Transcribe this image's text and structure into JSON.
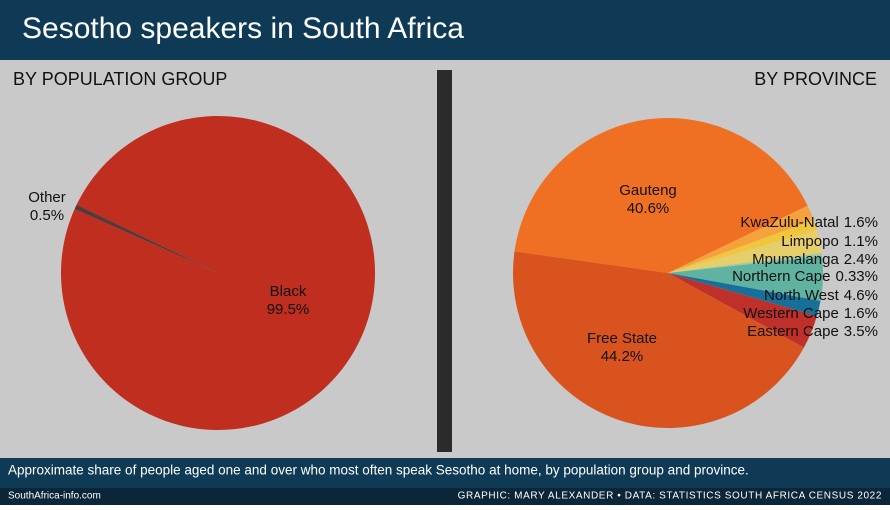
{
  "title": "Sesotho speakers in South Africa",
  "caption": "Approximate share of people aged one and over who most often speak Sesotho at home, by population group and province.",
  "source": "SouthAfrica-info.com",
  "credit": "GRAPHIC: MARY ALEXANDER • DATA: STATISTICS SOUTH AFRICA CENSUS 2022",
  "chart_data": [
    {
      "type": "pie",
      "title": "BY POPULATION GROUP",
      "categories": [
        "Black",
        "Other"
      ],
      "values": [
        99.5,
        0.5
      ],
      "value_labels": [
        "99.5%",
        "0.5%"
      ],
      "colors": [
        "#bf2e1f",
        "#5a3838"
      ]
    },
    {
      "type": "pie",
      "title": "BY PROVINCE",
      "categories": [
        "Gauteng",
        "KwaZulu-Natal",
        "Limpopo",
        "Mpumalanga",
        "Northern Cape",
        "North West",
        "Western Cape",
        "Eastern Cape",
        "Free State"
      ],
      "values": [
        40.6,
        1.6,
        1.1,
        2.4,
        0.33,
        4.6,
        1.6,
        3.5,
        44.2
      ],
      "value_labels": [
        "40.6%",
        "1.6%",
        "1.1%",
        "2.4%",
        "0.33%",
        "4.6%",
        "1.6%",
        "3.5%",
        "44.2%"
      ],
      "colors": [
        "#f07023",
        "#f5a23c",
        "#f1c63c",
        "#e6cf6a",
        "#9ccaa2",
        "#5fb3a0",
        "#17709a",
        "#c0302a",
        "#d9531e"
      ]
    }
  ]
}
